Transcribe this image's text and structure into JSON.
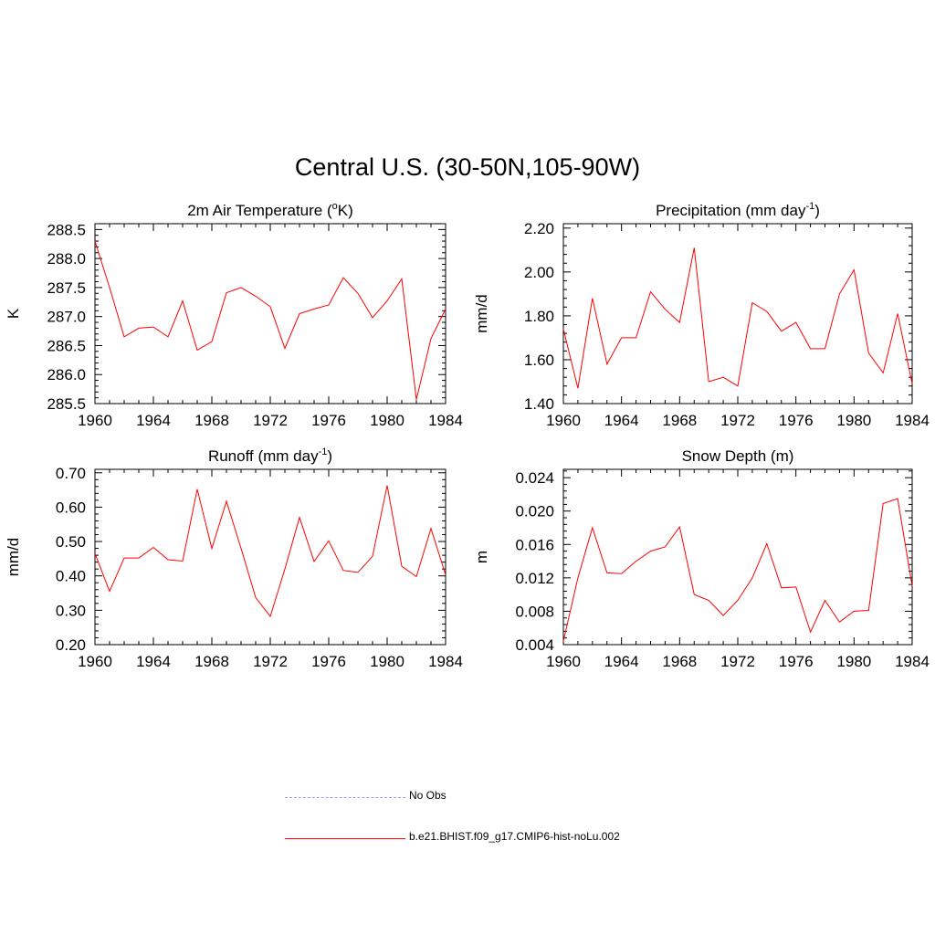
{
  "title": "Central U.S. (30-50N,105-90W)",
  "legend": [
    {
      "label": "No Obs",
      "color": "#9999ff",
      "style": "dashed"
    },
    {
      "label": "b.e21.BHIST.f09_g17.CMIP6-hist-noLu.002",
      "color": "#ff0000",
      "style": "solid"
    }
  ],
  "chart_data": [
    {
      "type": "line",
      "title": "2m Air Temperature (oK)",
      "title_parts": {
        "pre": "2m Air Temperature (",
        "sup": "o",
        "post": "K)"
      },
      "ylabel": "K",
      "xlim": [
        1960,
        1984
      ],
      "ylim": [
        285.5,
        288.6
      ],
      "x_ticks": [
        "1960",
        "1964",
        "1968",
        "1972",
        "1976",
        "1980",
        "1984"
      ],
      "y_ticks": [
        "285.5",
        "286.0",
        "286.5",
        "287.0",
        "287.5",
        "288.0",
        "288.5"
      ],
      "series": [
        {
          "color": "#ff0000",
          "x": [
            1960,
            1961,
            1962,
            1963,
            1964,
            1965,
            1966,
            1967,
            1968,
            1969,
            1970,
            1971,
            1972,
            1973,
            1974,
            1975,
            1976,
            1977,
            1978,
            1979,
            1980,
            1981,
            1982,
            1983,
            1984
          ],
          "values": [
            288.3,
            287.5,
            286.65,
            286.8,
            286.82,
            286.65,
            287.27,
            286.42,
            286.57,
            287.41,
            287.5,
            287.35,
            287.17,
            286.45,
            287.05,
            287.13,
            287.2,
            287.67,
            287.4,
            286.98,
            287.27,
            287.65,
            285.57,
            286.62,
            287.13
          ]
        }
      ]
    },
    {
      "type": "line",
      "title": "Precipitation (mm day-1)",
      "title_parts": {
        "pre": "Precipitation (mm day",
        "sup": "-1",
        "post": ")"
      },
      "ylabel": "mm/d",
      "xlim": [
        1960,
        1984
      ],
      "ylim": [
        1.4,
        2.22
      ],
      "x_ticks": [
        "1960",
        "1964",
        "1968",
        "1972",
        "1976",
        "1980",
        "1984"
      ],
      "y_ticks": [
        "1.40",
        "1.60",
        "1.80",
        "2.00",
        "2.20"
      ],
      "series": [
        {
          "color": "#ff0000",
          "x": [
            1960,
            1961,
            1962,
            1963,
            1964,
            1965,
            1966,
            1967,
            1968,
            1969,
            1970,
            1971,
            1972,
            1973,
            1974,
            1975,
            1976,
            1977,
            1978,
            1979,
            1980,
            1981,
            1982,
            1983,
            1984
          ],
          "values": [
            1.74,
            1.47,
            1.88,
            1.58,
            1.7,
            1.7,
            1.91,
            1.83,
            1.77,
            2.11,
            1.5,
            1.52,
            1.48,
            1.86,
            1.82,
            1.73,
            1.77,
            1.65,
            1.65,
            1.9,
            2.01,
            1.63,
            1.54,
            1.81,
            1.49
          ]
        }
      ]
    },
    {
      "type": "line",
      "title": "Runoff (mm day-1)",
      "title_parts": {
        "pre": "Runoff (mm day",
        "sup": "-1",
        "post": ")"
      },
      "ylabel": "mm/d",
      "xlim": [
        1960,
        1984
      ],
      "ylim": [
        0.2,
        0.71
      ],
      "x_ticks": [
        "1960",
        "1964",
        "1968",
        "1972",
        "1976",
        "1980",
        "1984"
      ],
      "y_ticks": [
        "0.20",
        "0.30",
        "0.40",
        "0.50",
        "0.60",
        "0.70"
      ],
      "series": [
        {
          "color": "#ff0000",
          "x": [
            1960,
            1961,
            1962,
            1963,
            1964,
            1965,
            1966,
            1967,
            1968,
            1969,
            1970,
            1971,
            1972,
            1973,
            1974,
            1975,
            1976,
            1977,
            1978,
            1979,
            1980,
            1981,
            1982,
            1983,
            1984
          ],
          "values": [
            0.465,
            0.355,
            0.452,
            0.452,
            0.483,
            0.447,
            0.443,
            0.652,
            0.48,
            0.617,
            0.48,
            0.337,
            0.282,
            0.42,
            0.57,
            0.442,
            0.502,
            0.416,
            0.41,
            0.457,
            0.663,
            0.428,
            0.398,
            0.538,
            0.403
          ]
        }
      ]
    },
    {
      "type": "line",
      "title": "Snow Depth (m)",
      "ylabel": "m",
      "xlim": [
        1960,
        1984
      ],
      "ylim": [
        0.004,
        0.025
      ],
      "x_ticks": [
        "1960",
        "1964",
        "1968",
        "1972",
        "1976",
        "1980",
        "1984"
      ],
      "y_ticks": [
        "0.004",
        "0.008",
        "0.012",
        "0.016",
        "0.020",
        "0.024"
      ],
      "series": [
        {
          "color": "#ff0000",
          "x": [
            1960,
            1961,
            1962,
            1963,
            1964,
            1965,
            1966,
            1967,
            1968,
            1969,
            1970,
            1971,
            1972,
            1973,
            1974,
            1975,
            1976,
            1977,
            1978,
            1979,
            1980,
            1981,
            1982,
            1983,
            1984
          ],
          "values": [
            0.0044,
            0.012,
            0.018,
            0.0126,
            0.0125,
            0.014,
            0.0152,
            0.0157,
            0.0181,
            0.01,
            0.0093,
            0.0075,
            0.0093,
            0.012,
            0.0161,
            0.0108,
            0.0109,
            0.0055,
            0.0093,
            0.0067,
            0.008,
            0.0081,
            0.0209,
            0.0215,
            0.011
          ]
        }
      ]
    }
  ]
}
